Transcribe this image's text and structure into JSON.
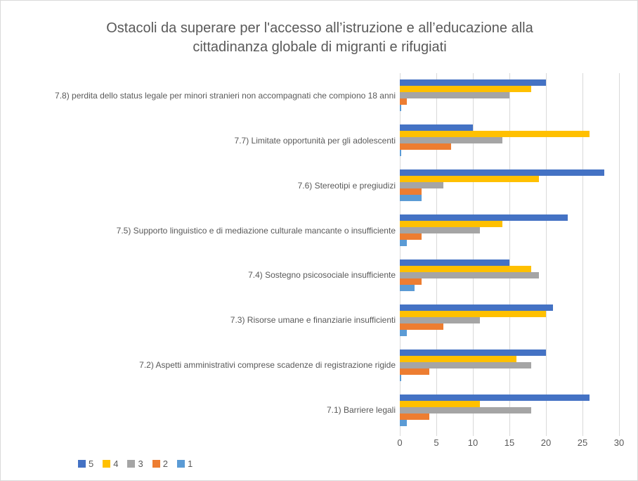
{
  "colors": {
    "text": "#595959",
    "grid": "#d9d9d9",
    "border": "#d9d9d9",
    "series_5": "#4472C4",
    "series_4": "#FFC000",
    "series_3": "#A5A5A5",
    "series_2": "#ED7D31",
    "series_1": "#5B9BD5"
  },
  "chart_data": {
    "type": "bar",
    "orientation": "horizontal",
    "title": "Ostacoli da superare per l'accesso all’istruzione e all’educazione alla cittadinanza globale di migranti e rifugiati",
    "categories": [
      "7.8) perdita dello status legale per minori stranieri non accompagnati che compiono 18 anni",
      "7.7) Limitate opportunità per gli adolescenti",
      "7.6) Stereotipi e pregiudizi",
      "7.5) Supporto linguistico e di mediazione culturale mancante o insufficiente",
      "7.4) Sostegno psicosociale insufficiente",
      "7.3) Risorse umane e finanziarie insufficienti",
      "7.2) Aspetti  amministrativi comprese scadenze di registrazione rigide",
      "7.1) Barriere legali"
    ],
    "series": [
      {
        "name": "5",
        "color": "#4472C4",
        "values": [
          20,
          10,
          28,
          23,
          15,
          21,
          20,
          26
        ]
      },
      {
        "name": "4",
        "color": "#FFC000",
        "values": [
          18,
          26,
          19,
          14,
          18,
          20,
          16,
          11
        ]
      },
      {
        "name": "3",
        "color": "#A5A5A5",
        "values": [
          15,
          14,
          6,
          11,
          19,
          11,
          18,
          18
        ]
      },
      {
        "name": "2",
        "color": "#ED7D31",
        "values": [
          1,
          7,
          3,
          3,
          3,
          6,
          4,
          4
        ]
      },
      {
        "name": "1",
        "color": "#5B9BD5",
        "values": [
          0.2,
          0.2,
          3,
          1,
          2,
          1,
          0.2,
          1
        ]
      }
    ],
    "x_axis": {
      "min": 0,
      "max": 30,
      "tick_step": 5,
      "tick_labels": [
        "0",
        "5",
        "10",
        "15",
        "20",
        "25",
        "30"
      ]
    },
    "legend": {
      "position": "bottom-left",
      "entries": [
        "5",
        "4",
        "3",
        "2",
        "1"
      ]
    },
    "grid": true
  }
}
